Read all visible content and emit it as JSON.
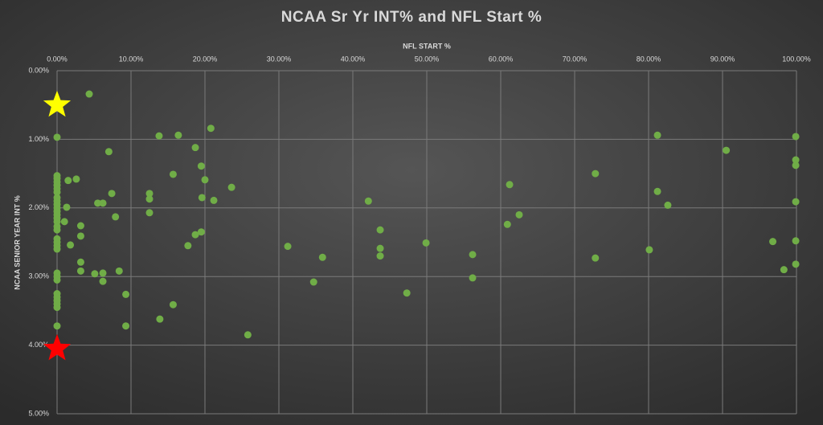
{
  "chart_data": {
    "type": "scatter",
    "title": "NCAA Sr Yr INT% and NFL Start %",
    "x_label": "NFL START %",
    "y_label": "NCAA SENIOR YEAR INT %",
    "x_axis_position": "top",
    "y_inverted": true,
    "grid": true,
    "xlim": [
      0,
      100
    ],
    "ylim": [
      0,
      5
    ],
    "xticks": [
      {
        "value": 0,
        "label": "0.00%"
      },
      {
        "value": 10,
        "label": "10.00%"
      },
      {
        "value": 20,
        "label": "20.00%"
      },
      {
        "value": 30,
        "label": "30.00%"
      },
      {
        "value": 40,
        "label": "40.00%"
      },
      {
        "value": 50,
        "label": "50.00%"
      },
      {
        "value": 60,
        "label": "60.00%"
      },
      {
        "value": 70,
        "label": "70.00%"
      },
      {
        "value": 80,
        "label": "80.00%"
      },
      {
        "value": 90,
        "label": "90.00%"
      },
      {
        "value": 100,
        "label": "100.00%"
      }
    ],
    "yticks": [
      {
        "value": 0,
        "label": "0.00%"
      },
      {
        "value": 1,
        "label": "1.00%"
      },
      {
        "value": 2,
        "label": "2.00%"
      },
      {
        "value": 3,
        "label": "3.00%"
      },
      {
        "value": 4,
        "label": "4.00%"
      },
      {
        "value": 5,
        "label": "5.00%"
      }
    ],
    "series": [
      {
        "color": "#70ad47",
        "marker": "circle",
        "x": [
          4.35,
          0,
          13.8,
          16.4,
          20.8,
          7.0,
          18.7,
          19.5,
          15.7,
          20.0,
          23.6,
          2.6,
          1.5,
          7.4,
          12.5,
          12.5,
          19.6,
          21.2,
          5.5,
          6.2,
          1.3,
          12.5,
          7.9,
          1.0,
          3.2,
          3.2,
          1.8,
          19.5,
          18.7,
          17.7,
          3.2,
          3.2,
          5.1,
          6.2,
          8.4,
          6.2,
          9.3,
          15.7,
          13.9,
          9.3,
          25.8,
          31.2,
          35.9,
          34.7,
          42.1,
          43.7,
          43.7,
          43.7,
          49.9,
          47.3,
          56.2,
          56.2,
          61.2,
          62.5,
          60.9,
          72.8,
          72.8,
          81.2,
          81.2,
          82.6,
          80.1,
          90.5,
          99.9,
          99.9,
          99.9,
          99.9,
          99.9,
          99.9,
          96.8,
          98.3,
          0,
          0,
          0,
          0,
          0,
          0,
          0,
          0,
          0,
          0,
          0,
          0,
          0,
          0,
          0,
          0,
          0,
          0,
          0,
          0,
          0,
          0,
          0,
          0,
          0,
          0,
          0,
          0,
          0
        ],
        "values": [
          0.34,
          0.97,
          0.95,
          0.94,
          0.84,
          1.18,
          1.12,
          1.39,
          1.51,
          1.59,
          1.7,
          1.58,
          1.6,
          1.79,
          1.79,
          1.87,
          1.85,
          1.89,
          1.93,
          1.93,
          1.99,
          2.07,
          2.13,
          2.2,
          2.26,
          2.41,
          2.54,
          2.35,
          2.39,
          2.55,
          2.79,
          2.92,
          2.96,
          2.95,
          2.92,
          3.07,
          3.26,
          3.41,
          3.62,
          3.72,
          3.85,
          2.56,
          2.72,
          3.08,
          1.9,
          2.32,
          2.59,
          2.7,
          2.51,
          3.24,
          2.68,
          3.02,
          1.66,
          2.1,
          2.24,
          1.5,
          2.73,
          0.94,
          1.76,
          1.96,
          2.61,
          1.16,
          0.96,
          1.3,
          1.38,
          1.91,
          2.48,
          2.82,
          2.49,
          2.9,
          1.53,
          1.57,
          1.62,
          1.67,
          1.72,
          1.77,
          1.85,
          1.9,
          1.95,
          2.0,
          2.05,
          2.1,
          2.15,
          2.2,
          2.27,
          2.32,
          2.45,
          2.5,
          2.55,
          2.6,
          2.95,
          3.0,
          3.05,
          3.25,
          3.3,
          3.35,
          3.4,
          3.45,
          3.72
        ]
      },
      {
        "color": "#ffff00",
        "marker": "star",
        "x": [
          0
        ],
        "values": [
          0.5
        ]
      },
      {
        "color": "#ff0000",
        "marker": "star",
        "x": [
          0
        ],
        "values": [
          4.05
        ]
      }
    ]
  }
}
